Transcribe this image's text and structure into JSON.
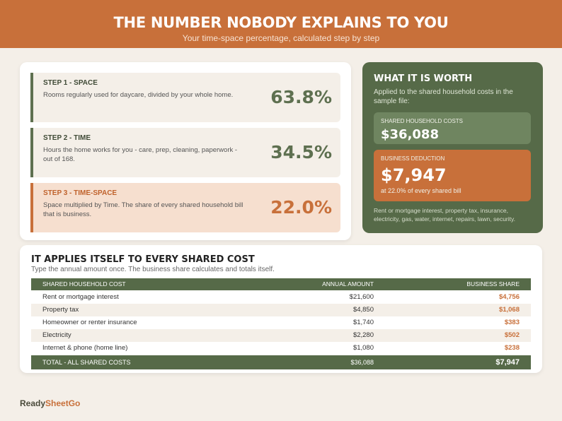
{
  "header": {
    "title": "THE NUMBER NOBODY EXPLAINS TO YOU",
    "subtitle": "Your time-space percentage, calculated step by step"
  },
  "steps": [
    {
      "label": "STEP 1 - SPACE",
      "description": "Rooms regularly used for daycare, divided by your whole home.",
      "value": "63.8%"
    },
    {
      "label": "STEP 2 - TIME",
      "description": "Hours the home works for you - care, prep, cleaning, paperwork - out of 168.",
      "value": "34.5%"
    },
    {
      "label": "STEP 3 - TIME-SPACE",
      "description": "Space multiplied by Time. The share of every shared household bill that is business.",
      "value": "22.0%"
    }
  ],
  "worth": {
    "title": "WHAT IT IS WORTH",
    "description": "Applied to the shared household costs in the sample file:",
    "shared_label": "SHARED HOUSEHOLD COSTS",
    "shared_value": "$36,088",
    "deduction_label": "BUSINESS DEDUCTION",
    "deduction_value": "$7,947",
    "deduction_note": "at 22.0% of every shared bill",
    "footnote": "Rent or mortgage interest, property tax, insurance, electricity, gas, water, internet, repairs, lawn, security."
  },
  "table": {
    "title": "IT APPLIES ITSELF TO EVERY SHARED COST",
    "subtitle": "Type the annual amount once. The business share calculates and totals itself.",
    "columns": [
      "SHARED HOUSEHOLD COST",
      "ANNUAL AMOUNT",
      "BUSINESS SHARE"
    ],
    "rows": [
      [
        "Rent or mortgage interest",
        "$21,600",
        "$4,756"
      ],
      [
        "Property tax",
        "$4,850",
        "$1,068"
      ],
      [
        "Homeowner or renter insurance",
        "$1,740",
        "$383"
      ],
      [
        "Electricity",
        "$2,280",
        "$502"
      ],
      [
        "Internet & phone (home line)",
        "$1,080",
        "$238"
      ]
    ],
    "total": [
      "TOTAL - ALL SHARED COSTS",
      "$36,088",
      "$7,947"
    ]
  },
  "brand": {
    "first": "Ready",
    "second": "SheetGo"
  }
}
